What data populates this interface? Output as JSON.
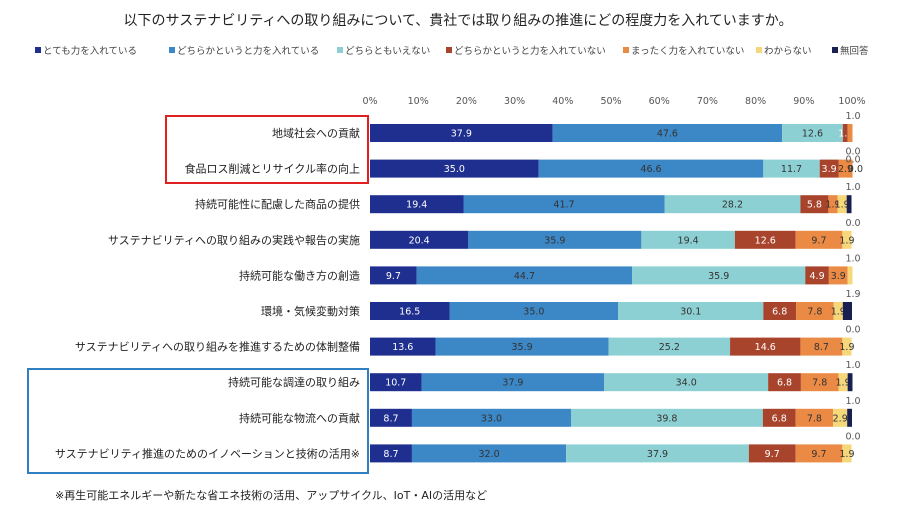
{
  "title": "以下のサステナビリティへの取り組みについて、貴社では取り組みの推進にどの程度力を入れていますか。",
  "footnote": "※再生可能エネルギーや新たな省エネ技術の活用、アップサイクル、IoT・AIの活用など",
  "colors": [
    "#1f2f8f",
    "#3c87c6",
    "#8dd0d3",
    "#a9442c",
    "#ea8a44",
    "#f6d77a",
    "#17204f"
  ],
  "chart_data": {
    "type": "bar",
    "orientation": "horizontal",
    "stacked": true,
    "xlim": [
      0,
      100
    ],
    "ticks": [
      "0%",
      "10%",
      "20%",
      "30%",
      "40%",
      "50%",
      "60%",
      "70%",
      "80%",
      "90%",
      "100%"
    ],
    "legend_position": "top",
    "series_names": [
      "とても力を入れている",
      "どちらかというと力を入れている",
      "どちらともいえない",
      "どちらかというと力を入れていない",
      "まったく力を入れていない",
      "わからない",
      "無回答"
    ],
    "categories": [
      "地域社会への貢献",
      "食品ロス削減とリサイクル率の向上",
      "持続可能性に配慮した商品の提供",
      "サステナビリティへの取り組みの実践や報告の実施",
      "持続可能な働き方の創造",
      "環境・気候変動対策",
      "サステナビリティへの取り組みを推進するための体制整備",
      "持続可能な調達の取り組み",
      "持続可能な物流への貢献",
      "サステナビリティ推進のためのイノベーションと技術の活用※"
    ],
    "rows": [
      [
        37.9,
        47.6,
        12.6,
        1.0,
        1.0,
        0.0,
        0.0
      ],
      [
        35.0,
        46.6,
        11.7,
        3.9,
        2.9,
        0.0,
        0.0
      ],
      [
        19.4,
        41.7,
        28.2,
        5.8,
        1.9,
        1.9,
        1.0
      ],
      [
        20.4,
        35.9,
        19.4,
        12.6,
        9.7,
        1.9,
        0.0
      ],
      [
        9.7,
        44.7,
        35.9,
        4.9,
        3.9,
        1.0,
        0.0
      ],
      [
        16.5,
        35.0,
        30.1,
        6.8,
        7.8,
        1.9,
        1.9
      ],
      [
        13.6,
        35.9,
        25.2,
        14.6,
        8.7,
        1.9,
        0.0
      ],
      [
        10.7,
        37.9,
        34.0,
        6.8,
        7.8,
        1.9,
        1.0
      ],
      [
        8.7,
        33.0,
        39.8,
        6.8,
        7.8,
        2.9,
        1.0
      ],
      [
        8.7,
        32.0,
        37.9,
        9.7,
        9.7,
        1.9,
        0.0
      ]
    ],
    "labels": [
      [
        "37.9",
        "47.6",
        "12.6",
        "1.0",
        "",
        "",
        ""
      ],
      [
        "35.0",
        "46.6",
        "11.7",
        "3.9",
        "2.9",
        "0.0",
        ""
      ],
      [
        "19.4",
        "41.7",
        "28.2",
        "5.8",
        "1.9",
        "1.9",
        ""
      ],
      [
        "20.4",
        "35.9",
        "19.4",
        "12.6",
        "9.7",
        "1.9",
        ""
      ],
      [
        "9.7",
        "44.7",
        "35.9",
        "4.9",
        "3.9",
        "",
        ""
      ],
      [
        "16.5",
        "35.0",
        "30.1",
        "6.8",
        "7.8",
        "1.9",
        ""
      ],
      [
        "13.6",
        "35.9",
        "25.2",
        "14.6",
        "8.7",
        "1.9",
        ""
      ],
      [
        "10.7",
        "37.9",
        "34.0",
        "6.8",
        "7.8",
        "1.9",
        ""
      ],
      [
        "8.7",
        "33.0",
        "39.8",
        "6.8",
        "7.8",
        "2.9",
        ""
      ],
      [
        "8.7",
        "32.0",
        "37.9",
        "9.7",
        "9.7",
        "1.9",
        ""
      ]
    ],
    "above_labels": [
      [
        "1.0"
      ],
      [
        "0.0",
        "0.0"
      ],
      [
        "1.0"
      ],
      [
        "0.0"
      ],
      [
        "1.0"
      ],
      [
        "1.9"
      ],
      [
        "0.0"
      ],
      [
        "1.0"
      ],
      [
        "1.0"
      ],
      [
        "0.0"
      ]
    ]
  }
}
